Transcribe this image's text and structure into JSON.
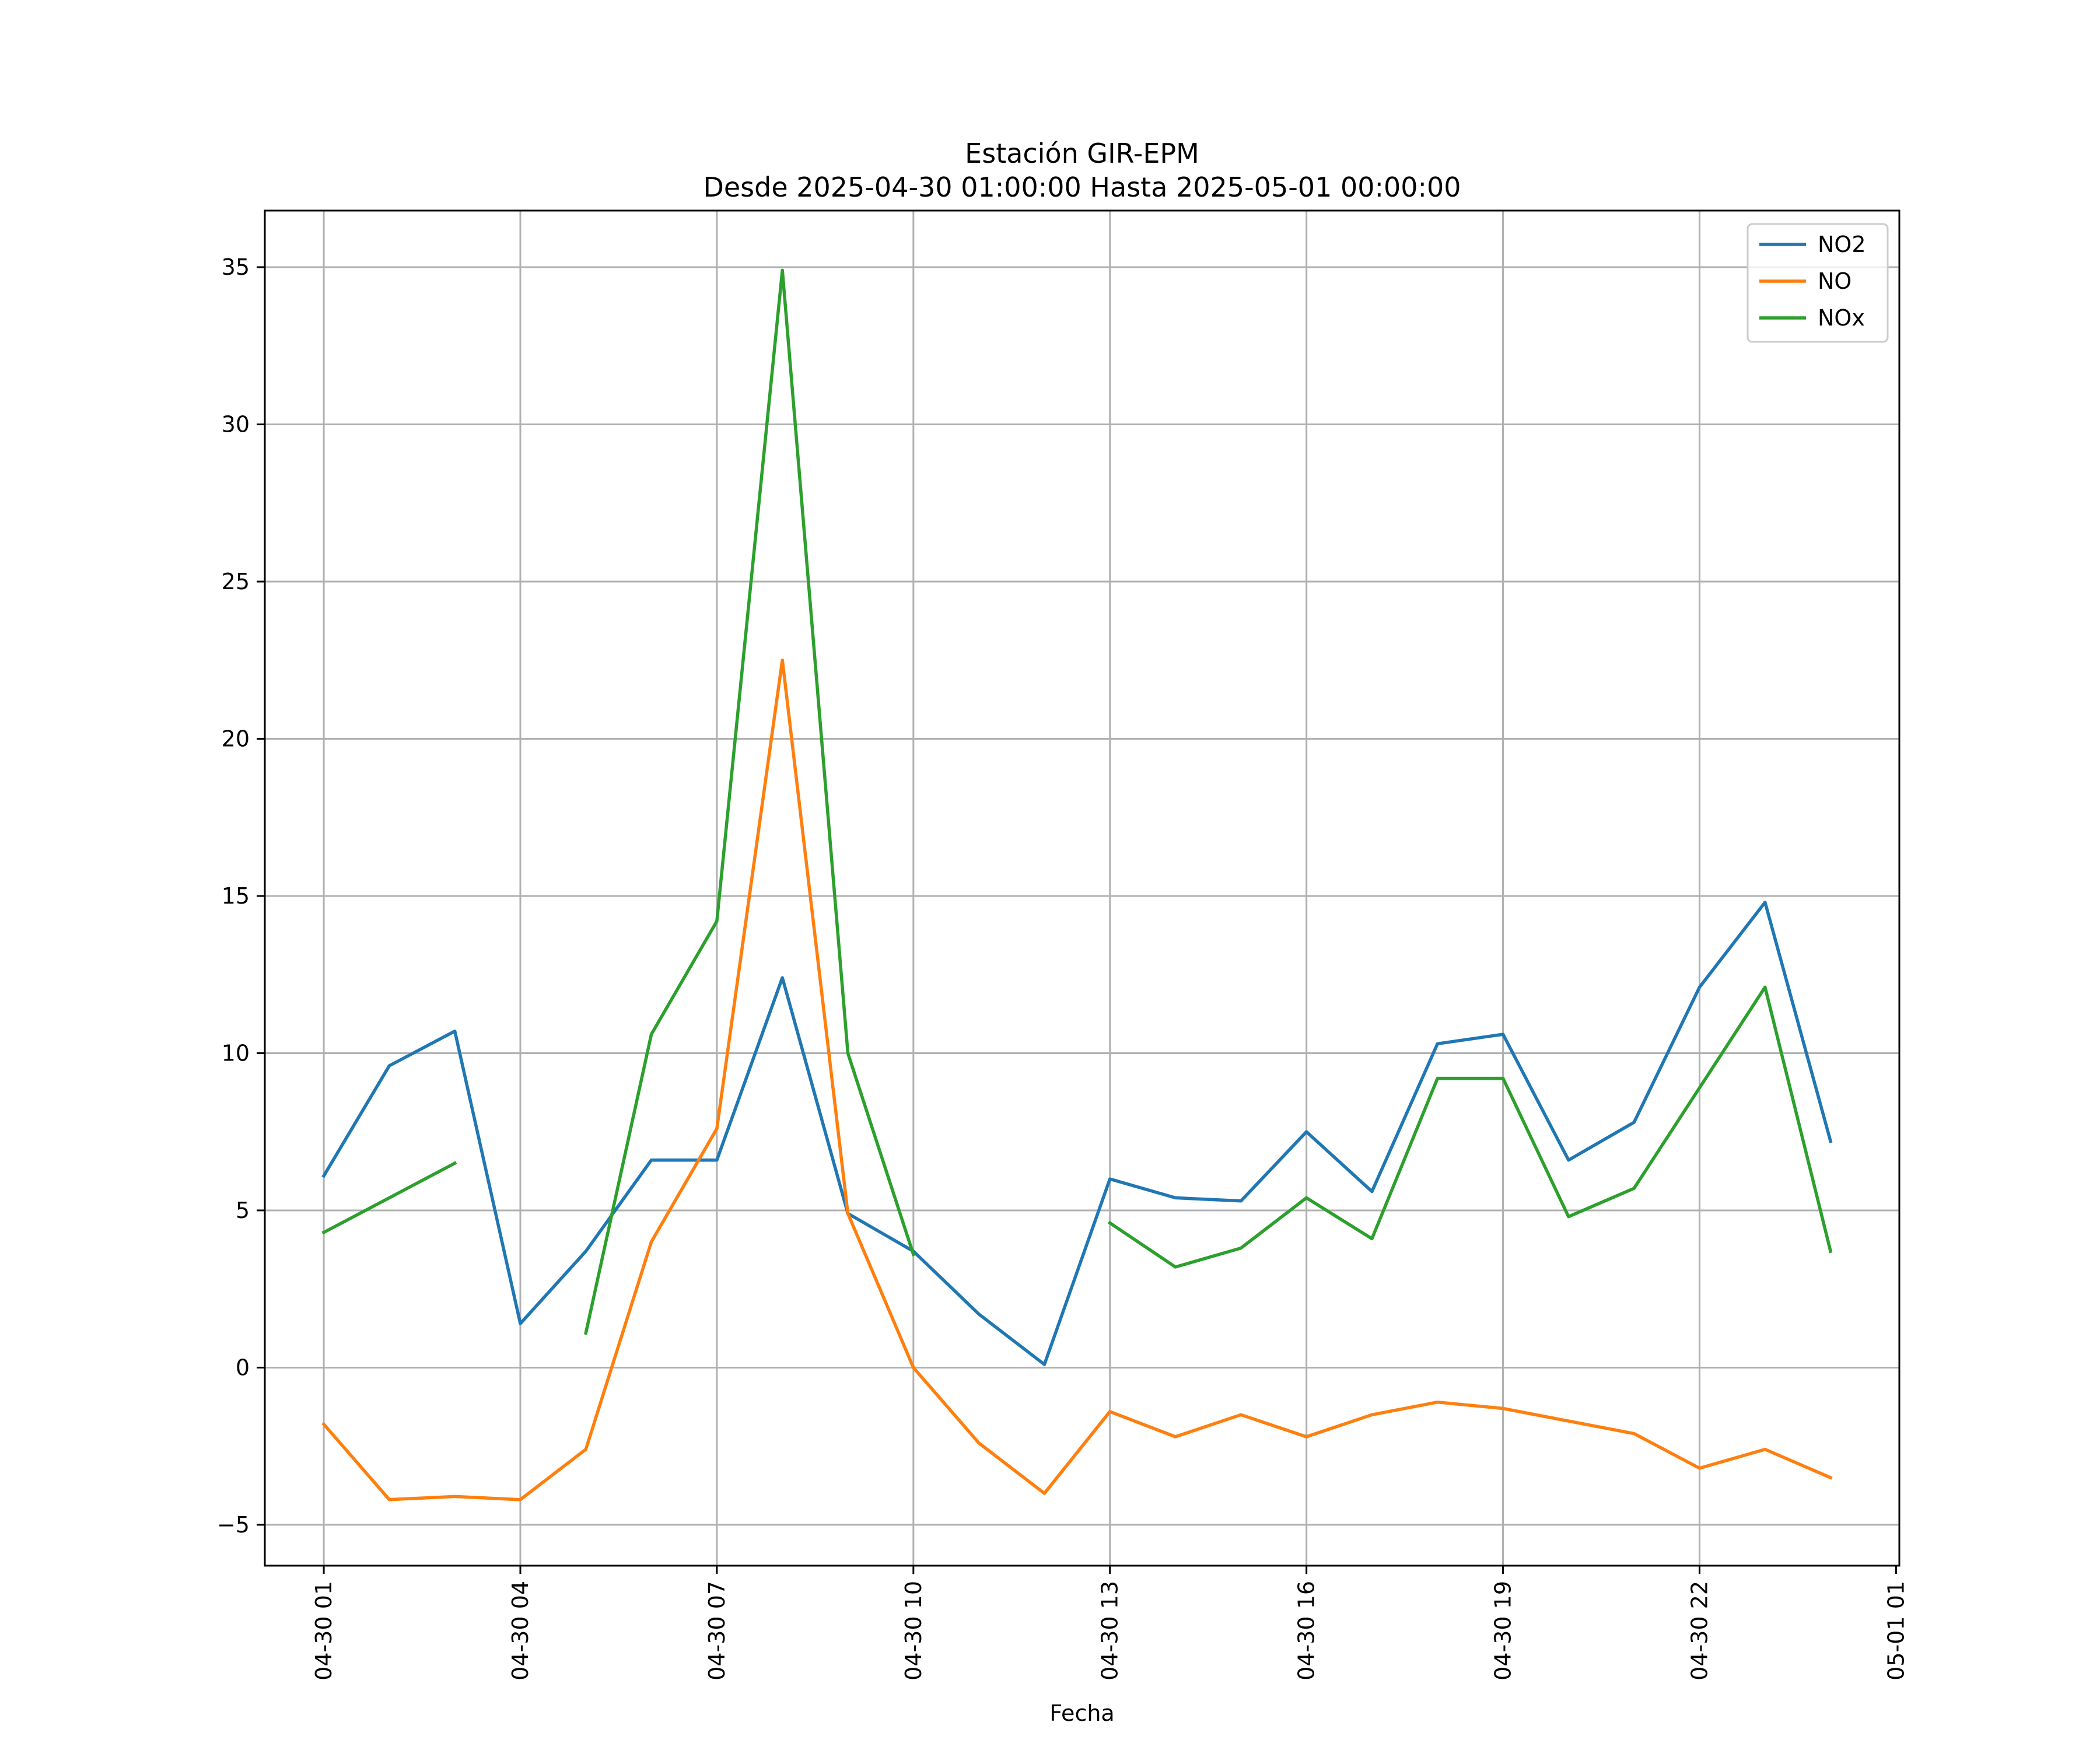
{
  "chart_data": {
    "type": "line",
    "title": [
      "Estación GIR-EPM",
      "Desde 2025-04-30 01:00:00 Hasta 2025-05-01 00:00:00"
    ],
    "xlabel": "Fecha",
    "ylabel": "",
    "x": [
      "04-30 01",
      "04-30 02",
      "04-30 03",
      "04-30 04",
      "04-30 05",
      "04-30 06",
      "04-30 07",
      "04-30 08",
      "04-30 09",
      "04-30 10",
      "04-30 11",
      "04-30 12",
      "04-30 13",
      "04-30 14",
      "04-30 15",
      "04-30 16",
      "04-30 17",
      "04-30 18",
      "04-30 19",
      "04-30 20",
      "04-30 21",
      "04-30 22",
      "04-30 23",
      "05-01 00"
    ],
    "x_ticks": [
      "04-30 01",
      "04-30 04",
      "04-30 07",
      "04-30 10",
      "04-30 13",
      "04-30 16",
      "04-30 19",
      "04-30 22",
      "05-01 01"
    ],
    "x_tick_hours": [
      1,
      4,
      7,
      10,
      13,
      16,
      19,
      22,
      25
    ],
    "xlim_hours": [
      0.1,
      25.05
    ],
    "ylim": [
      -6.3,
      36.8
    ],
    "y_ticks": [
      -5,
      0,
      5,
      10,
      15,
      20,
      25,
      30,
      35
    ],
    "y_tick_labels": [
      "−5",
      "0",
      "5",
      "10",
      "15",
      "20",
      "25",
      "30",
      "35"
    ],
    "grid": true,
    "legend_position": "top-right",
    "series": [
      {
        "name": "NO2",
        "color": "#1f77b4",
        "values": [
          6.1,
          9.6,
          10.7,
          1.4,
          3.7,
          6.6,
          6.6,
          12.4,
          4.9,
          3.7,
          1.7,
          0.1,
          6.0,
          5.4,
          5.3,
          7.5,
          5.6,
          10.3,
          10.6,
          6.6,
          7.8,
          12.1,
          14.8,
          7.2
        ]
      },
      {
        "name": "NO",
        "color": "#ff7f0e",
        "values": [
          -1.8,
          -4.2,
          -4.1,
          -4.2,
          -2.6,
          4.0,
          7.6,
          22.5,
          4.9,
          0.0,
          -2.4,
          -4.0,
          -1.4,
          -2.2,
          -1.5,
          -2.2,
          -1.5,
          -1.1,
          -1.3,
          -1.7,
          -2.1,
          -3.2,
          -2.6,
          -3.5
        ]
      },
      {
        "name": "NOx",
        "color": "#2ca02c",
        "values": [
          4.3,
          5.4,
          6.5,
          null,
          1.1,
          10.6,
          14.2,
          34.9,
          10.0,
          3.6,
          null,
          null,
          4.6,
          3.2,
          3.8,
          5.4,
          4.1,
          9.2,
          9.2,
          4.8,
          5.7,
          8.9,
          12.1,
          3.7
        ]
      }
    ]
  }
}
